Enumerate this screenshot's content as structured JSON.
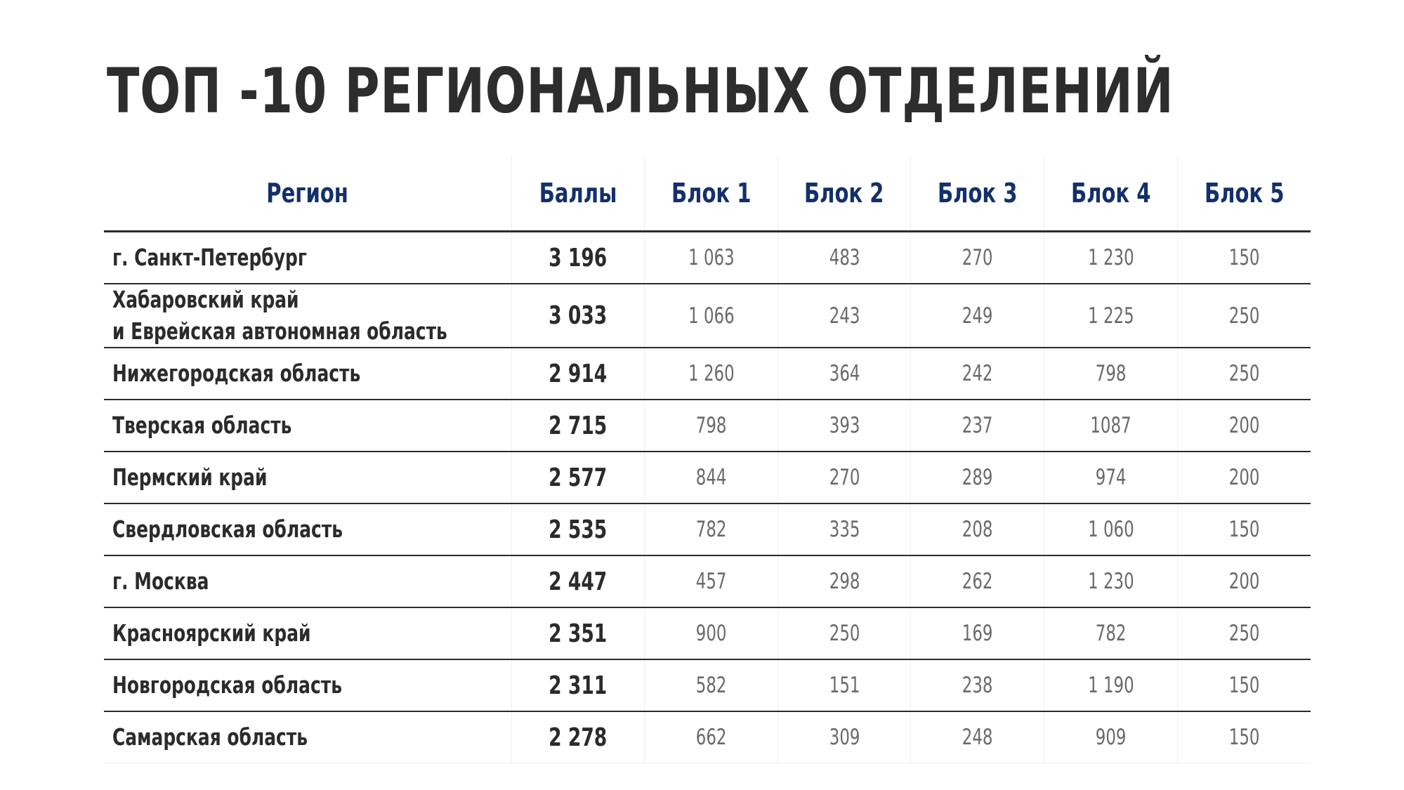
{
  "title": "ТОП -10 РЕГИОНАЛЬНЫХ ОТДЕЛЕНИЙ",
  "table": {
    "headers": [
      "Регион",
      "Баллы",
      "Блок 1",
      "Блок 2",
      "Блок 3",
      "Блок 4",
      "Блок 5"
    ],
    "rows": [
      {
        "region": [
          "г. Санкт-Петербург"
        ],
        "score": "3 196",
        "blocks": [
          "1 063",
          "483",
          "270",
          "1 230",
          "150"
        ]
      },
      {
        "region": [
          "Хабаровский край",
          "и Еврейская автономная область"
        ],
        "score": "3 033",
        "blocks": [
          "1 066",
          "243",
          "249",
          "1 225",
          "250"
        ]
      },
      {
        "region": [
          "Нижегородская область"
        ],
        "score": "2 914",
        "blocks": [
          "1 260",
          "364",
          "242",
          "798",
          "250"
        ]
      },
      {
        "region": [
          "Тверская область"
        ],
        "score": "2 715",
        "blocks": [
          "798",
          "393",
          "237",
          "1087",
          "200"
        ]
      },
      {
        "region": [
          "Пермский край"
        ],
        "score": "2 577",
        "blocks": [
          "844",
          "270",
          "289",
          "974",
          "200"
        ]
      },
      {
        "region": [
          "Свердловская область"
        ],
        "score": "2 535",
        "blocks": [
          "782",
          "335",
          "208",
          "1 060",
          "150"
        ]
      },
      {
        "region": [
          "г. Москва"
        ],
        "score": "2 447",
        "blocks": [
          "457",
          "298",
          "262",
          "1 230",
          "200"
        ]
      },
      {
        "region": [
          "Красноярский край"
        ],
        "score": "2 351",
        "blocks": [
          "900",
          "250",
          "169",
          "782",
          "250"
        ]
      },
      {
        "region": [
          "Новгородская область"
        ],
        "score": "2 311",
        "blocks": [
          "582",
          "151",
          "238",
          "1 190",
          "150"
        ]
      },
      {
        "region": [
          "Самарская область"
        ],
        "score": "2 278",
        "blocks": [
          "662",
          "309",
          "248",
          "909",
          "150"
        ]
      }
    ]
  },
  "colors": {
    "header_text": "#13306b",
    "body_text": "#2b2b2b",
    "value_text": "#6a6a6a",
    "rule": "#2b2b2b"
  }
}
